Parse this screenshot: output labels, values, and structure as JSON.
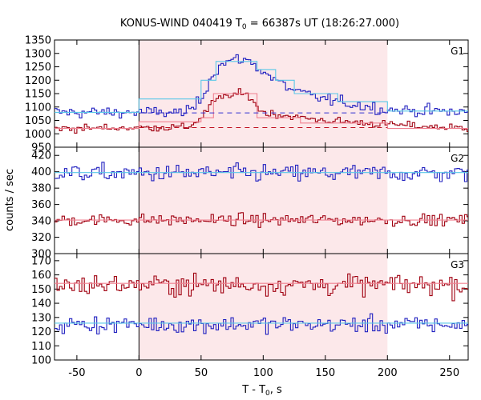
{
  "chart_data": {
    "type": "line",
    "title": {
      "main": "KONUS-WIND 040419 T",
      "sub": "0",
      "rest": " = 66387s UT (18:26:27.000)"
    },
    "xlabel": {
      "main": "T - T",
      "sub": "0",
      "rest": ", s"
    },
    "ylabel": "counts / sec",
    "xlim": [
      -68,
      265
    ],
    "xticks": [
      -50,
      0,
      50,
      100,
      150,
      200,
      250
    ],
    "highlight_interval": [
      0,
      200
    ],
    "colors": {
      "blue": "#2020c0",
      "red": "#a00010",
      "fit_cyan": "#5ac8e8",
      "fit_pink": "#f08090",
      "background_band": "#fce8ea",
      "dashed_blue": "#3030d0",
      "dashed_red": "#c01020"
    },
    "panels": [
      {
        "label": "G1",
        "ylim": [
          950,
          1350
        ],
        "yticks": [
          950,
          1000,
          1050,
          1100,
          1150,
          1200,
          1250,
          1300,
          1350
        ],
        "series": [
          {
            "color": "blue",
            "baseline": 1080,
            "noise": 18,
            "profile": [
              [
                -68,
                1080
              ],
              [
                40,
                1080
              ],
              [
                50,
                1130
              ],
              [
                60,
                1230
              ],
              [
                70,
                1270
              ],
              [
                85,
                1280
              ],
              [
                95,
                1250
              ],
              [
                110,
                1200
              ],
              [
                125,
                1160
              ],
              [
                140,
                1140
              ],
              [
                160,
                1120
              ],
              [
                200,
                1090
              ],
              [
                265,
                1080
              ]
            ],
            "fit": [
              [
                -68,
                1080
              ],
              [
                0,
                1080
              ],
              [
                0,
                1130
              ],
              [
                50,
                1130
              ],
              [
                50,
                1200
              ],
              [
                62,
                1200
              ],
              [
                62,
                1270
              ],
              [
                95,
                1270
              ],
              [
                95,
                1240
              ],
              [
                110,
                1240
              ],
              [
                110,
                1200
              ],
              [
                125,
                1200
              ],
              [
                125,
                1150
              ],
              [
                160,
                1150
              ],
              [
                160,
                1120
              ],
              [
                200,
                1120
              ],
              [
                200,
                1085
              ],
              [
                265,
                1085
              ]
            ]
          },
          {
            "color": "red",
            "baseline": 1020,
            "noise": 12,
            "profile": [
              [
                -68,
                1020
              ],
              [
                40,
                1025
              ],
              [
                50,
                1060
              ],
              [
                60,
                1120
              ],
              [
                70,
                1140
              ],
              [
                80,
                1150
              ],
              [
                90,
                1140
              ],
              [
                95,
                1100
              ],
              [
                100,
                1080
              ],
              [
                130,
                1060
              ],
              [
                150,
                1050
              ],
              [
                200,
                1035
              ],
              [
                265,
                1020
              ]
            ],
            "fit": [
              [
                -68,
                1020
              ],
              [
                0,
                1020
              ],
              [
                0,
                1045
              ],
              [
                50,
                1045
              ],
              [
                50,
                1060
              ],
              [
                60,
                1060
              ],
              [
                60,
                1150
              ],
              [
                95,
                1150
              ],
              [
                95,
                1060
              ],
              [
                130,
                1060
              ],
              [
                130,
                1040
              ],
              [
                200,
                1040
              ],
              [
                200,
                1020
              ],
              [
                265,
                1020
              ]
            ],
            "dashed": 1023
          }
        ],
        "dashed_blue": 1078
      },
      {
        "label": "G2",
        "ylim": [
          300,
          430
        ],
        "yticks": [
          300,
          320,
          340,
          360,
          380,
          400,
          420
        ],
        "series": [
          {
            "color": "blue",
            "baseline": 398,
            "noise": 9,
            "profile": [
              [
                -68,
                398
              ],
              [
                265,
                398
              ]
            ],
            "fit": [
              [
                -68,
                399
              ],
              [
                265,
                399
              ]
            ]
          },
          {
            "color": "red",
            "baseline": 341,
            "noise": 6,
            "profile": [
              [
                -68,
                341
              ],
              [
                265,
                341
              ]
            ],
            "fit": [
              [
                -68,
                341
              ],
              [
                265,
                341
              ]
            ]
          }
        ]
      },
      {
        "label": "G3",
        "ylim": [
          100,
          175
        ],
        "yticks": [
          100,
          110,
          120,
          130,
          140,
          150,
          160,
          170
        ],
        "series": [
          {
            "color": "blue",
            "baseline": 125,
            "noise": 5,
            "profile": [
              [
                -68,
                125
              ],
              [
                265,
                125
              ]
            ],
            "fit": [
              [
                -68,
                126
              ],
              [
                265,
                126
              ]
            ]
          },
          {
            "color": "red",
            "baseline": 153,
            "noise": 6,
            "profile": [
              [
                -68,
                153
              ],
              [
                265,
                153
              ]
            ],
            "fit": [
              [
                -68,
                154
              ],
              [
                265,
                154
              ]
            ]
          }
        ]
      }
    ]
  }
}
